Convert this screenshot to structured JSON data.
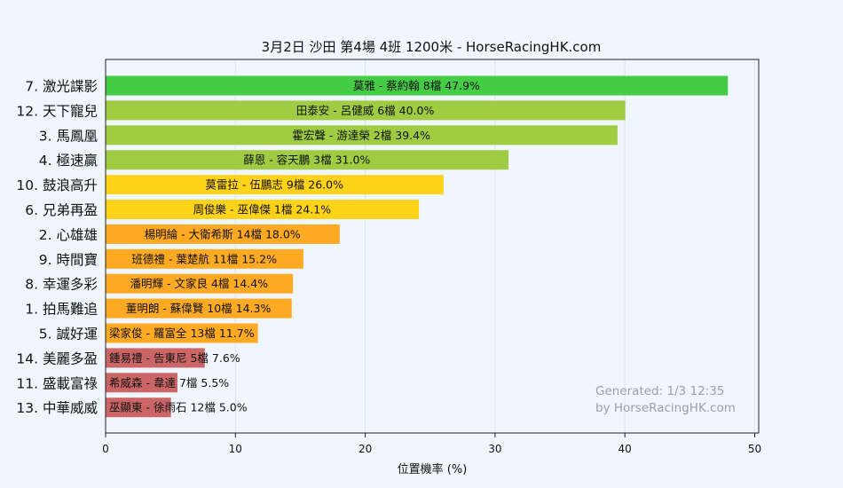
{
  "chart_data": {
    "type": "bar",
    "orientation": "horizontal",
    "title": "3月2日  沙田  第4場  4班  1200米 - HorseRacingHK.com",
    "xlabel": "位置機率 (%)",
    "ylabel": "",
    "xlim": [
      0,
      50
    ],
    "xticks": [
      "0",
      "10",
      "20",
      "30",
      "40",
      "50"
    ],
    "grid": true,
    "categories": [
      "7. 激光諜影",
      "12. 天下寵兒",
      "3. 馬鳳凰",
      "4. 極速贏",
      "10. 鼓浪高升",
      "6. 兄弟再盈",
      "2. 心雄雄",
      "9. 時間寶",
      "8. 幸運多彩",
      "1. 拍馬難追",
      "5. 誠好運",
      "14. 美麗多盈",
      "11. 盛載富祿",
      "13. 中華威威"
    ],
    "values": [
      47.9,
      40.0,
      39.4,
      31.0,
      26.0,
      24.1,
      18.0,
      15.2,
      14.4,
      14.3,
      11.7,
      7.6,
      5.5,
      5.0
    ],
    "bar_labels": [
      "莫雅 - 蔡約翰 8檔  47.9%",
      "田泰安 - 呂健威 6檔  40.0%",
      "霍宏聲 - 游達榮 2檔  39.4%",
      "薛恩 - 容天鵬 3檔  31.0%",
      "莫雷拉 - 伍鵬志 9檔  26.0%",
      "周俊樂 - 巫偉傑 1檔  24.1%",
      "楊明綸 - 大衛希斯 14檔  18.0%",
      "班德禮 - 葉楚航 11檔  15.2%",
      "潘明輝 - 文家良 4檔  14.4%",
      "董明朗 - 蘇偉賢 10檔  14.3%",
      "梁家俊 - 羅富全 13檔  11.7%",
      "鍾易禮 - 告東尼 5檔  7.6%",
      "希威森 - 韋達 7檔  5.5%",
      "巫顯東 - 徐雨石 12檔  5.0%"
    ],
    "colors": [
      "#44cc44",
      "#a0cc44",
      "#a0cc44",
      "#a0cc44",
      "#ffd319",
      "#ffd319",
      "#ffaa22",
      "#ffaa22",
      "#ffaa22",
      "#ffaa22",
      "#ffaa22",
      "#cc6666",
      "#cc6666",
      "#cc6666"
    ]
  },
  "watermark": {
    "line1": "Generated: 1/3 12:35",
    "line2": "by HorseRacingHK.com"
  }
}
